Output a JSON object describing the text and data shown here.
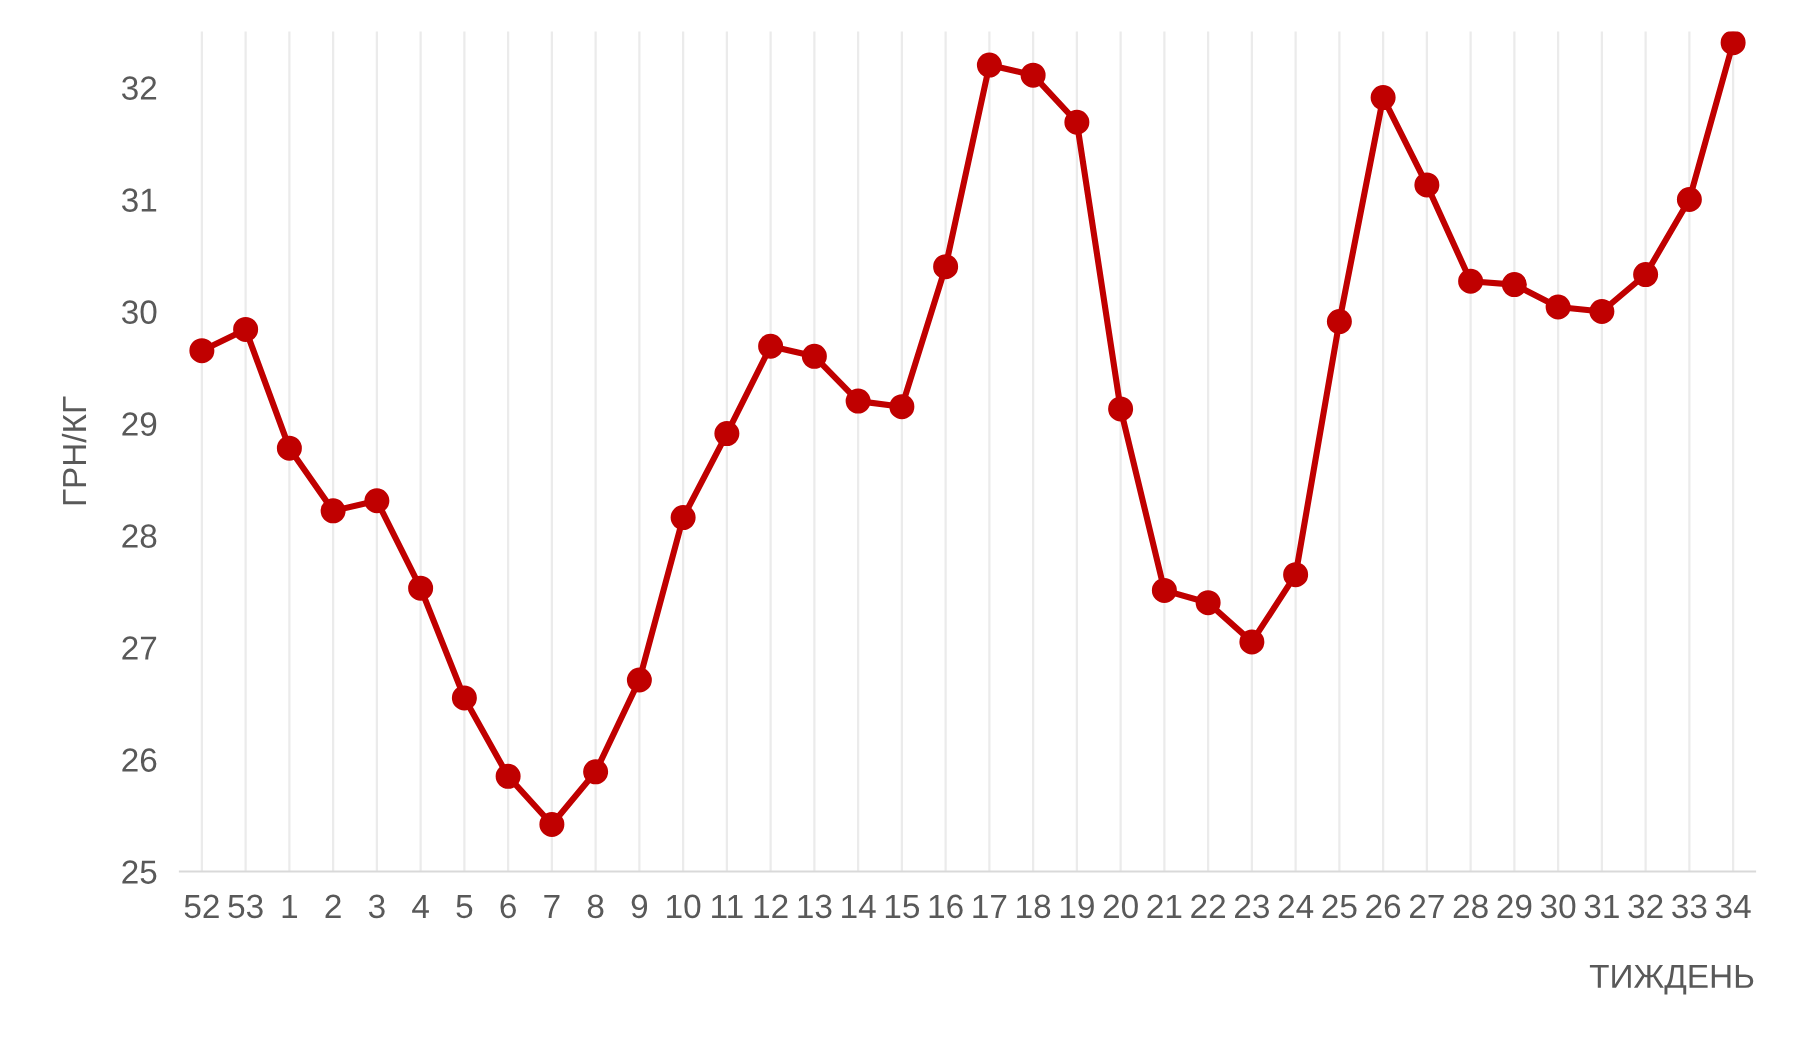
{
  "chart_data": {
    "type": "line",
    "xlabel": "ТИЖДЕНЬ",
    "ylabel": "ГРН/КГ",
    "categories": [
      "52",
      "53",
      "1",
      "2",
      "3",
      "4",
      "5",
      "6",
      "7",
      "8",
      "9",
      "10",
      "11",
      "12",
      "13",
      "14",
      "15",
      "16",
      "17",
      "18",
      "19",
      "20",
      "21",
      "22",
      "23",
      "24",
      "25",
      "26",
      "27",
      "28",
      "29",
      "30",
      "31",
      "32",
      "33",
      "34"
    ],
    "series": [
      {
        "color": "#c00000",
        "values": [
          29.65,
          29.84,
          28.78,
          28.22,
          28.31,
          27.53,
          26.55,
          25.85,
          25.42,
          25.89,
          26.71,
          28.16,
          28.91,
          29.69,
          29.6,
          29.2,
          29.15,
          30.4,
          32.2,
          32.11,
          31.69,
          29.13,
          27.51,
          27.4,
          27.05,
          27.65,
          29.91,
          31.91,
          31.13,
          30.27,
          30.24,
          30.04,
          30.0,
          30.33,
          31.0,
          32.4
        ]
      }
    ],
    "ylim": [
      25,
      32.5
    ],
    "yticks": [
      25,
      26,
      27,
      28,
      29,
      30,
      31,
      32
    ],
    "grid": "x",
    "marker": "circle",
    "line_style": "solid",
    "legend": false
  }
}
